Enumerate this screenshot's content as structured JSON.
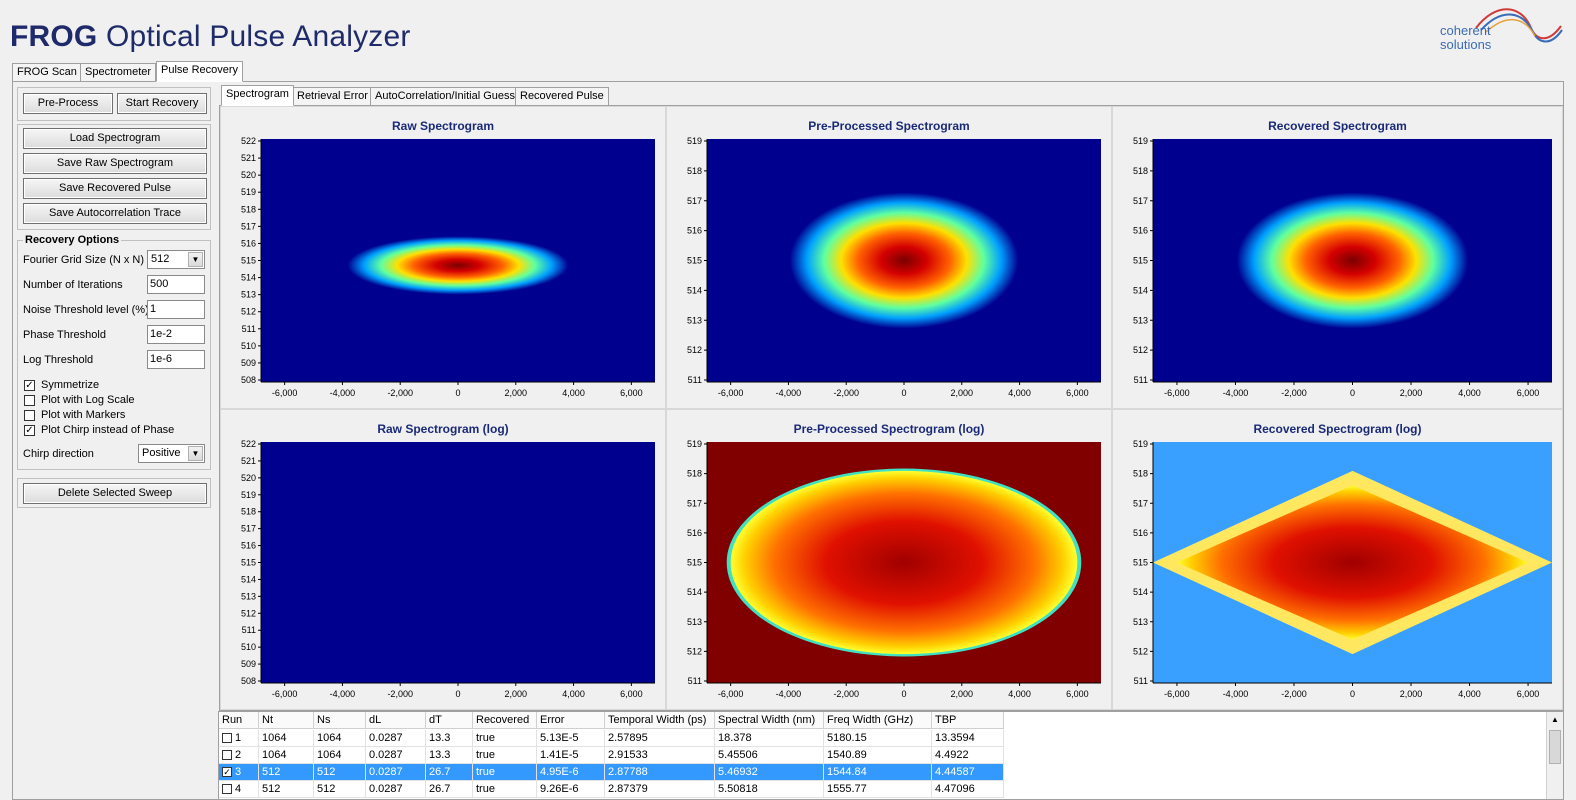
{
  "app": {
    "title_bold": "FROG",
    "title_rest": "Optical Pulse Analyzer",
    "logo_line1": "coherent",
    "logo_line2": "solutions"
  },
  "main_tabs": [
    "FROG Scan",
    "Spectrometer",
    "Pulse Recovery"
  ],
  "sub_tabs": [
    "Spectrogram",
    "Retrieval Error",
    "AutoCorrelation/Initial Guess",
    "Recovered Pulse"
  ],
  "left_panel": {
    "preprocess": "Pre-Process",
    "start_recovery": "Start Recovery",
    "load_spectrogram": "Load Spectrogram",
    "save_raw_spectrogram": "Save Raw Spectrogram",
    "save_recovered_pulse": "Save Recovered Pulse",
    "save_autocorrelation": "Save Autocorrelation Trace",
    "recovery_options": "Recovery Options",
    "fourier_grid_label": "Fourier Grid Size (N x N)",
    "fourier_grid_value": "512",
    "iterations_label": "Number of Iterations",
    "iterations_value": "500",
    "noise_label": "Noise Threshold level (%)",
    "noise_value": "1",
    "phase_label": "Phase Threshold",
    "phase_value": "1e-2",
    "log_label": "Log Threshold",
    "log_value": "1e-6",
    "symmetrize": "Symmetrize",
    "plot_log_scale": "Plot with Log Scale",
    "plot_markers": "Plot with Markers",
    "plot_chirp": "Plot Chirp instead of Phase",
    "chirp_dir_label": "Chirp direction",
    "chirp_dir_value": "Positive",
    "delete_sweep": "Delete Selected Sweep"
  },
  "checkbox_states": {
    "symmetrize": true,
    "plot_log_scale": false,
    "plot_markers": false,
    "plot_chirp": true
  },
  "colors": {
    "title": "#1f2a6b",
    "plot_title": "#1a2a78",
    "bg_blue": "#00008f",
    "selection": "#3399ff"
  },
  "plots": [
    {
      "title": "Raw Spectrogram",
      "y_ticks": [
        "522",
        "521",
        "520",
        "519",
        "518",
        "517",
        "516",
        "515",
        "514",
        "513",
        "512",
        "511",
        "510",
        "509",
        "508"
      ],
      "x_ticks": [
        "-6,000",
        "-4,000",
        "-2,000",
        "0",
        "2,000",
        "4,000",
        "6,000"
      ],
      "style": "raw"
    },
    {
      "title": "Pre-Processed Spectrogram",
      "y_ticks": [
        "519",
        "518",
        "517",
        "516",
        "515",
        "514",
        "513",
        "512",
        "511"
      ],
      "x_ticks": [
        "-6,000",
        "-4,000",
        "-2,000",
        "0",
        "2,000",
        "4,000",
        "6,000"
      ],
      "style": "pre"
    },
    {
      "title": "Recovered Spectrogram",
      "y_ticks": [
        "519",
        "518",
        "517",
        "516",
        "515",
        "514",
        "513",
        "512",
        "511"
      ],
      "x_ticks": [
        "-6,000",
        "-4,000",
        "-2,000",
        "0",
        "2,000",
        "4,000",
        "6,000"
      ],
      "style": "rec"
    },
    {
      "title": "Raw Spectrogram (log)",
      "y_ticks": [
        "522",
        "521",
        "520",
        "519",
        "518",
        "517",
        "516",
        "515",
        "514",
        "513",
        "512",
        "511",
        "510",
        "509",
        "508"
      ],
      "x_ticks": [
        "-6,000",
        "-4,000",
        "-2,000",
        "0",
        "2,000",
        "4,000",
        "6,000"
      ],
      "style": "rawlog"
    },
    {
      "title": "Pre-Processed Spectrogram (log)",
      "y_ticks": [
        "519",
        "518",
        "517",
        "516",
        "515",
        "514",
        "513",
        "512",
        "511"
      ],
      "x_ticks": [
        "-6,000",
        "-4,000",
        "-2,000",
        "0",
        "2,000",
        "4,000",
        "6,000"
      ],
      "style": "prelog"
    },
    {
      "title": "Recovered Spectrogram (log)",
      "y_ticks": [
        "519",
        "518",
        "517",
        "516",
        "515",
        "514",
        "513",
        "512",
        "511"
      ],
      "x_ticks": [
        "-6,000",
        "-4,000",
        "-2,000",
        "0",
        "2,000",
        "4,000",
        "6,000"
      ],
      "style": "reclog"
    }
  ],
  "table": {
    "headers": [
      "Run",
      "Nt",
      "Ns",
      "dL",
      "dT",
      "Recovered",
      "Error",
      "Temporal Width (ps)",
      "Spectral Width (nm)",
      "Freq Width (GHz)",
      "TBP"
    ],
    "rows": [
      {
        "checked": false,
        "selected": false,
        "cells": [
          "1",
          "1064",
          "1064",
          "0.0287",
          "13.3",
          "true",
          "5.13E-5",
          "2.57895",
          "18.378",
          "5180.15",
          "13.3594"
        ]
      },
      {
        "checked": false,
        "selected": false,
        "cells": [
          "2",
          "1064",
          "1064",
          "0.0287",
          "13.3",
          "true",
          "1.41E-5",
          "2.91533",
          "5.45506",
          "1540.89",
          "4.4922"
        ]
      },
      {
        "checked": true,
        "selected": true,
        "cells": [
          "3",
          "512",
          "512",
          "0.0287",
          "26.7",
          "true",
          "4.95E-6",
          "2.87788",
          "5.46932",
          "1544.84",
          "4.44587"
        ]
      },
      {
        "checked": false,
        "selected": false,
        "cells": [
          "4",
          "512",
          "512",
          "0.0287",
          "26.7",
          "true",
          "9.26E-6",
          "2.87379",
          "5.50818",
          "1555.77",
          "4.47096"
        ]
      }
    ]
  }
}
